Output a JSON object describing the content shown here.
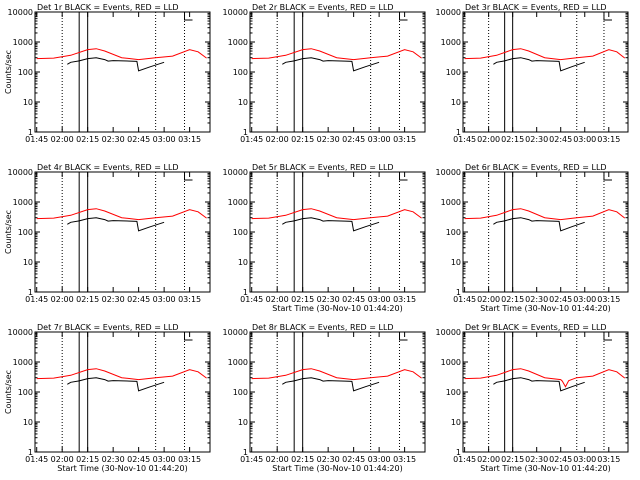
{
  "chart_data": [
    {
      "type": "line",
      "title": "Det 1r BLACK = Events, RED = LLD",
      "xlabel": "",
      "ylabel": "Counts/sec",
      "dip": false
    },
    {
      "type": "line",
      "title": "Det 2r BLACK = Events, RED = LLD",
      "xlabel": "",
      "ylabel": "",
      "dip": false
    },
    {
      "type": "line",
      "title": "Det 3r BLACK = Events, RED = LLD",
      "xlabel": "",
      "ylabel": "",
      "dip": false
    },
    {
      "type": "line",
      "title": "Det 4r BLACK = Events, RED = LLD",
      "xlabel": "",
      "ylabel": "Counts/sec",
      "dip": false
    },
    {
      "type": "line",
      "title": "Det 5r BLACK = Events, RED = LLD",
      "xlabel": "Start Time (30-Nov-10 01:44:20)",
      "ylabel": "",
      "dip": false
    },
    {
      "type": "line",
      "title": "Det 6r BLACK = Events, RED = LLD",
      "xlabel": "Start Time (30-Nov-10 01:44:20)",
      "ylabel": "",
      "dip": false
    },
    {
      "type": "line",
      "title": "Det 7r BLACK = Events, RED = LLD",
      "xlabel": "Start Time (30-Nov-10 01:44:20)",
      "ylabel": "Counts/sec",
      "dip": false
    },
    {
      "type": "line",
      "title": "Det 8r BLACK = Events, RED = LLD",
      "xlabel": "Start Time (30-Nov-10 01:44:20)",
      "ylabel": "",
      "dip": false
    },
    {
      "type": "line",
      "title": "Det 9r BLACK = Events, RED = LLD",
      "xlabel": "Start Time (30-Nov-10 01:44:20)",
      "ylabel": "",
      "dip": true
    }
  ],
  "common": {
    "x_ticks": [
      "01:45",
      "02:00",
      "02:15",
      "02:30",
      "02:45",
      "03:00",
      "03:15"
    ],
    "y_ticks": [
      "1",
      "10",
      "100",
      "1000",
      "10000"
    ],
    "ylim": [
      1,
      10000
    ],
    "y_scale": "log",
    "colors": {
      "events": "#000000",
      "lld": "#ff0000"
    }
  },
  "lld_series": [
    {
      "x": "01:45",
      "y": 280
    },
    {
      "x": "01:55",
      "y": 290
    },
    {
      "x": "02:05",
      "y": 360
    },
    {
      "x": "02:15",
      "y": 560
    },
    {
      "x": "02:20",
      "y": 600
    },
    {
      "x": "02:25",
      "y": 500
    },
    {
      "x": "02:35",
      "y": 300
    },
    {
      "x": "02:45",
      "y": 260
    },
    {
      "x": "02:55",
      "y": 300
    },
    {
      "x": "03:05",
      "y": 340
    },
    {
      "x": "03:15",
      "y": 560
    },
    {
      "x": "03:20",
      "y": 470
    },
    {
      "x": "03:25",
      "y": 290
    }
  ],
  "events_series": [
    {
      "x": "02:03",
      "y": 180
    },
    {
      "x": "02:05",
      "y": 210
    },
    {
      "x": "02:10",
      "y": 235
    },
    {
      "x": "02:15",
      "y": 280
    },
    {
      "x": "02:20",
      "y": 300
    },
    {
      "x": "02:25",
      "y": 260
    },
    {
      "x": "02:27",
      "y": 230
    },
    {
      "x": "02:30",
      "y": 240
    },
    {
      "x": "02:40",
      "y": 230
    },
    {
      "x": "02:44",
      "y": 225
    },
    {
      "x": "02:45",
      "y": 110
    },
    {
      "x": "02:52",
      "y": 150
    },
    {
      "x": "03:00",
      "y": 210
    }
  ],
  "vertical_lines": {
    "dotted": [
      "02:00",
      "02:55",
      "03:12"
    ],
    "solid": [
      "02:10",
      "02:15"
    ]
  }
}
